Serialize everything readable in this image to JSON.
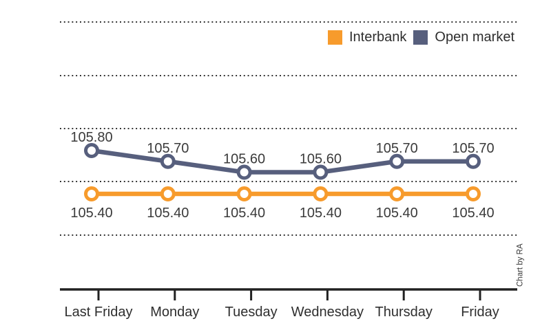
{
  "credit": "Chart by RA",
  "legend": {
    "position": "top-right",
    "items": [
      {
        "label": "Interbank",
        "color": "#F79B2C"
      },
      {
        "label": "Open market",
        "color": "#575F7D"
      }
    ]
  },
  "chart_data": {
    "type": "line",
    "title": "",
    "xlabel": "",
    "ylabel": "",
    "categories": [
      "Last Friday",
      "Monday",
      "Tuesday",
      "Wednesday",
      "Thursday",
      "Friday"
    ],
    "series": [
      {
        "name": "Interbank",
        "color": "#F79B2C",
        "values": [
          105.4,
          105.4,
          105.4,
          105.4,
          105.4,
          105.4
        ],
        "value_labels": [
          "105.40",
          "105.40",
          "105.40",
          "105.40",
          "105.40",
          "105.40"
        ],
        "label_position": "below"
      },
      {
        "name": "Open market",
        "color": "#575F7D",
        "values": [
          105.8,
          105.7,
          105.6,
          105.6,
          105.7,
          105.7
        ],
        "value_labels": [
          "105.80",
          "105.70",
          "105.60",
          "105.60",
          "105.70",
          "105.70"
        ],
        "label_position": "above"
      }
    ],
    "marker": "open-circle",
    "grid": "horizontal-dotted",
    "h_gridline_count": 5,
    "y_axis_tick_labels": "none",
    "legend_position": "top-right",
    "ylim_approx": [
      105.2,
      106.9
    ]
  }
}
